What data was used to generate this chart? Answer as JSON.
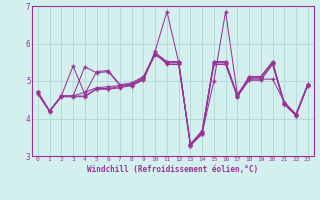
{
  "xlabel": "Windchill (Refroidissement éolien,°C)",
  "bg_color": "#d4f0ee",
  "grid_color": "#aed8d4",
  "line_color": "#993399",
  "xlim": [
    -0.5,
    23.5
  ],
  "ylim": [
    3,
    7
  ],
  "yticks": [
    3,
    4,
    5,
    6,
    7
  ],
  "xticks": [
    0,
    1,
    2,
    3,
    4,
    5,
    6,
    7,
    8,
    9,
    10,
    11,
    12,
    13,
    14,
    15,
    16,
    17,
    18,
    19,
    20,
    21,
    22,
    23
  ],
  "series": [
    [
      4.7,
      4.2,
      4.6,
      4.6,
      4.6,
      4.8,
      4.8,
      4.85,
      4.9,
      5.05,
      5.8,
      6.85,
      5.5,
      3.3,
      3.6,
      5.0,
      6.85,
      4.65,
      5.05,
      5.05,
      5.05,
      4.45,
      4.1,
      4.9
    ],
    [
      4.7,
      4.2,
      4.6,
      4.6,
      4.7,
      4.82,
      4.85,
      4.88,
      4.92,
      5.1,
      5.72,
      5.5,
      5.5,
      3.3,
      3.65,
      5.5,
      5.5,
      4.6,
      5.1,
      5.1,
      5.5,
      4.4,
      4.1,
      4.9
    ],
    [
      4.7,
      4.2,
      4.6,
      5.4,
      4.65,
      5.25,
      5.28,
      4.9,
      4.95,
      5.12,
      5.75,
      5.52,
      5.52,
      3.32,
      3.68,
      5.52,
      5.52,
      4.62,
      5.12,
      5.12,
      5.52,
      4.42,
      4.12,
      4.92
    ],
    [
      4.7,
      4.2,
      4.6,
      4.6,
      5.38,
      5.22,
      5.25,
      4.88,
      4.88,
      5.08,
      5.7,
      5.48,
      5.48,
      3.28,
      3.62,
      5.48,
      5.48,
      4.58,
      5.08,
      5.08,
      5.48,
      4.38,
      4.08,
      4.88
    ],
    [
      4.65,
      4.18,
      4.58,
      4.58,
      4.58,
      4.78,
      4.78,
      4.82,
      4.88,
      5.02,
      5.76,
      5.44,
      5.44,
      3.28,
      3.58,
      5.44,
      5.44,
      4.58,
      5.02,
      5.02,
      5.44,
      4.38,
      4.08,
      4.88
    ]
  ]
}
